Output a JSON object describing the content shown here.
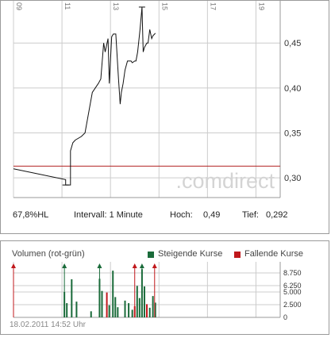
{
  "price_chart": {
    "x_tick_labels": [
      "09",
      "11",
      "13",
      "15",
      "17",
      "19"
    ],
    "y_tick_labels": [
      "0,45",
      "0,40",
      "0,35",
      "0,30"
    ],
    "watermark": ".comdirect"
  },
  "info_bar": {
    "range_label": "67,8%HL",
    "interval_label": "Intervall: 1 Minute",
    "high_label": "Hoch:",
    "high_value": "0,49",
    "low_label": "Tief:",
    "low_value": "0,292"
  },
  "volume_chart": {
    "title": "Volumen (rot-grün)",
    "legend_up_label": "Steigende Kurse",
    "legend_down_label": "Fallende Kurse",
    "y_tick_labels": [
      "8.750",
      "6.250",
      "5.000",
      "2.500",
      "0"
    ]
  },
  "footer": {
    "timestamp": "18.02.2011 14:52 Uhr"
  },
  "colors": {
    "up": "#1a6b3a",
    "down": "#c0181c",
    "reference_line": "#b22222",
    "grid": "#cccccc"
  },
  "chart_data": [
    {
      "type": "line",
      "title": "",
      "xlabel": "",
      "ylabel": "",
      "x_unit": "hour of day",
      "xlim": [
        9,
        20
      ],
      "ylim": [
        0.278,
        0.497
      ],
      "x_ticks": [
        9,
        11,
        13,
        15,
        17,
        19
      ],
      "y_ticks": [
        0.45,
        0.4,
        0.35,
        0.3
      ],
      "reference_line": 0.313,
      "grid": true,
      "series": [
        {
          "x": [
            9.0,
            11.15,
            11.15,
            11.35,
            11.35,
            11.45,
            11.55,
            11.8,
            11.95,
            12.25,
            12.5,
            12.6,
            12.72,
            12.78,
            12.9,
            12.95,
            13.05,
            13.12,
            13.22,
            13.33,
            13.4,
            13.45,
            13.52,
            13.6,
            13.7,
            13.85,
            13.9,
            14.0,
            14.05,
            14.12,
            14.2,
            14.22,
            14.3,
            14.35,
            14.4,
            14.5,
            14.55,
            14.62,
            14.7,
            14.75,
            14.82,
            14.85
          ],
          "y": [
            0.31,
            0.298,
            0.292,
            0.292,
            0.33,
            0.339,
            0.342,
            0.346,
            0.35,
            0.395,
            0.405,
            0.41,
            0.45,
            0.44,
            0.455,
            0.405,
            0.457,
            0.46,
            0.46,
            0.41,
            0.382,
            0.395,
            0.405,
            0.42,
            0.43,
            0.43,
            0.428,
            0.43,
            0.43,
            0.44,
            0.46,
            0.465,
            0.49,
            0.44,
            0.445,
            0.45,
            0.45,
            0.465,
            0.455,
            0.458,
            0.46,
            0.461
          ]
        }
      ]
    },
    {
      "type": "bar",
      "title": "Volumen (rot-grün)",
      "xlabel": "",
      "ylabel": "",
      "x_unit": "hour of day",
      "xlim": [
        9,
        20
      ],
      "ylim": [
        0,
        10000
      ],
      "y_ticks": [
        8750,
        6250,
        5000,
        2500,
        0
      ],
      "grid": true,
      "legend": [
        "Steigende Kurse",
        "Fallende Kurse"
      ],
      "volume_bars": [
        {
          "x": 11.1,
          "v": 5000,
          "dir": "up"
        },
        {
          "x": 11.2,
          "v": 2800,
          "dir": "up"
        },
        {
          "x": 11.4,
          "v": 7500,
          "dir": "up"
        },
        {
          "x": 11.6,
          "v": 3100,
          "dir": "up"
        },
        {
          "x": 12.2,
          "v": 1200,
          "dir": "up"
        },
        {
          "x": 12.55,
          "v": 7600,
          "dir": "up"
        },
        {
          "x": 12.65,
          "v": 5200,
          "dir": "up"
        },
        {
          "x": 12.85,
          "v": 4900,
          "dir": "down"
        },
        {
          "x": 12.95,
          "v": 2400,
          "dir": "up"
        },
        {
          "x": 13.1,
          "v": 9200,
          "dir": "up"
        },
        {
          "x": 13.2,
          "v": 4000,
          "dir": "up"
        },
        {
          "x": 13.3,
          "v": 2000,
          "dir": "up"
        },
        {
          "x": 13.6,
          "v": 3300,
          "dir": "up"
        },
        {
          "x": 13.75,
          "v": 2800,
          "dir": "up"
        },
        {
          "x": 13.9,
          "v": 1500,
          "dir": "up"
        },
        {
          "x": 14.0,
          "v": 2200,
          "dir": "down"
        },
        {
          "x": 14.1,
          "v": 6200,
          "dir": "up"
        },
        {
          "x": 14.2,
          "v": 3800,
          "dir": "up"
        },
        {
          "x": 14.3,
          "v": 9500,
          "dir": "up"
        },
        {
          "x": 14.4,
          "v": 6100,
          "dir": "up"
        },
        {
          "x": 14.5,
          "v": 2600,
          "dir": "down"
        },
        {
          "x": 14.62,
          "v": 1900,
          "dir": "up"
        },
        {
          "x": 14.75,
          "v": 4200,
          "dir": "up"
        },
        {
          "x": 14.85,
          "v": 2900,
          "dir": "up"
        }
      ],
      "markers": [
        {
          "x": 9.0,
          "dir": "down"
        },
        {
          "x": 11.1,
          "dir": "up"
        },
        {
          "x": 12.55,
          "dir": "up"
        },
        {
          "x": 14.0,
          "dir": "down"
        },
        {
          "x": 14.3,
          "dir": "up"
        },
        {
          "x": 14.82,
          "dir": "down"
        }
      ]
    }
  ]
}
